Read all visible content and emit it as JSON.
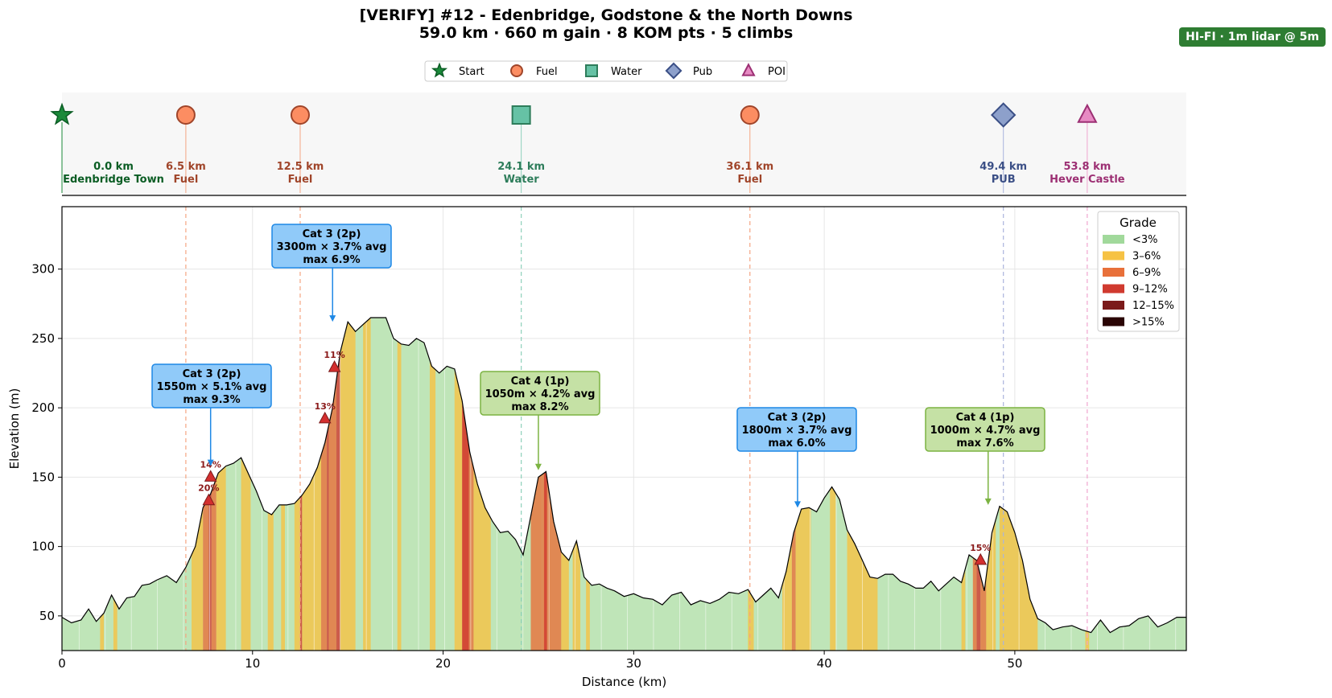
{
  "header": {
    "title": "[VERIFY] #12 - Edenbridge, Godstone & the North Downs",
    "subtitle": "59.0 km · 660 m gain · 8 KOM pts · 5 climbs",
    "badge": "HI-FI · 1m lidar @ 5m"
  },
  "legend_markers": [
    {
      "label": "Start",
      "shape": "star",
      "color": "#1b8a3a"
    },
    {
      "label": "Fuel",
      "shape": "circle",
      "color": "#fc8d62"
    },
    {
      "label": "Water",
      "shape": "square",
      "color": "#66c2a5"
    },
    {
      "label": "Pub",
      "shape": "diamond",
      "color": "#8da0cb"
    },
    {
      "label": "POI",
      "shape": "triangle",
      "color": "#e78ac3"
    }
  ],
  "waypoints": [
    {
      "km": 0.0,
      "km_label": "0.0 km",
      "name": "Edenbridge Town",
      "shape": "star",
      "fill": "#1b8a3a",
      "text_color": "#0b5d24",
      "line_color": "#1b8a3a"
    },
    {
      "km": 6.5,
      "km_label": "6.5 km",
      "name": "Fuel",
      "shape": "circle",
      "fill": "#fc8d62",
      "text_color": "#a0452a",
      "line_color": "#f4a582"
    },
    {
      "km": 12.5,
      "km_label": "12.5 km",
      "name": "Fuel",
      "shape": "circle",
      "fill": "#fc8d62",
      "text_color": "#a0452a",
      "line_color": "#f4a582"
    },
    {
      "km": 24.1,
      "km_label": "24.1 km",
      "name": "Water",
      "shape": "square",
      "fill": "#66c2a5",
      "text_color": "#2e7d5b",
      "line_color": "#8fd1bb"
    },
    {
      "km": 36.1,
      "km_label": "36.1 km",
      "name": "Fuel",
      "shape": "circle",
      "fill": "#fc8d62",
      "text_color": "#a0452a",
      "line_color": "#f4a582"
    },
    {
      "km": 49.4,
      "km_label": "49.4 km",
      "name": "PUB",
      "shape": "diamond",
      "fill": "#8da0cb",
      "text_color": "#3b4f86",
      "line_color": "#aab4dd"
    },
    {
      "km": 53.8,
      "km_label": "53.8 km",
      "name": "Hever Castle",
      "shape": "triangle",
      "fill": "#e78ac3",
      "text_color": "#9c2f73",
      "line_color": "#f0a6cf"
    }
  ],
  "climbs": [
    {
      "line1": "Cat 3 (2p)",
      "line2": "1550m × 5.1% avg",
      "line3": "max 9.3%",
      "box_color": "#90caf9",
      "edge_color": "#1e88e5",
      "target_km": 7.8,
      "target_elev": 158
    },
    {
      "line1": "Cat 3 (2p)",
      "line2": "3300m × 3.7% avg",
      "line3": "max 6.9%",
      "box_color": "#90caf9",
      "edge_color": "#1e88e5",
      "target_km": 14.2,
      "target_elev": 262
    },
    {
      "line1": "Cat 4 (1p)",
      "line2": "1050m × 4.2% avg",
      "line3": "max 8.2%",
      "box_color": "#c5e1a5",
      "edge_color": "#7cb342",
      "target_km": 25.0,
      "target_elev": 155
    },
    {
      "line1": "Cat 3 (2p)",
      "line2": "1800m × 3.7% avg",
      "line3": "max 6.0%",
      "box_color": "#90caf9",
      "edge_color": "#1e88e5",
      "target_km": 38.6,
      "target_elev": 128
    },
    {
      "line1": "Cat 4 (1p)",
      "line2": "1000m × 4.7% avg",
      "line3": "max 7.6%",
      "box_color": "#c5e1a5",
      "edge_color": "#7cb342",
      "target_km": 48.6,
      "target_elev": 130
    }
  ],
  "steep_markers": [
    {
      "km": 7.7,
      "elev": 133,
      "label": "20%"
    },
    {
      "km": 7.8,
      "elev": 150,
      "label": "14%"
    },
    {
      "km": 13.8,
      "elev": 192,
      "label": "13%"
    },
    {
      "km": 14.3,
      "elev": 229,
      "label": "11%"
    },
    {
      "km": 48.2,
      "elev": 90,
      "label": "15%"
    }
  ],
  "grade_legend": {
    "title": "Grade",
    "items": [
      {
        "label": "<3%",
        "color": "#a1d99b"
      },
      {
        "label": "3–6%",
        "color": "#f6c244"
      },
      {
        "label": "6–9%",
        "color": "#e8703a"
      },
      {
        "label": "9–12%",
        "color": "#d03a2f"
      },
      {
        "label": "12–15%",
        "color": "#7b1a1a"
      },
      {
        "label": ">15%",
        "color": "#2a0505"
      }
    ]
  },
  "chart_data": {
    "type": "area",
    "xlabel": "Distance (km)",
    "ylabel": "Elevation (m)",
    "xlim": [
      0,
      59
    ],
    "ylim": [
      25,
      345
    ],
    "xticks": [
      0,
      10,
      20,
      30,
      40,
      50
    ],
    "yticks": [
      50,
      100,
      150,
      200,
      250,
      300
    ],
    "grid": true,
    "legend_position": "top-right",
    "x": [
      0.0,
      0.5,
      1.0,
      1.4,
      1.8,
      2.2,
      2.6,
      3.0,
      3.4,
      3.8,
      4.2,
      4.6,
      5.0,
      5.5,
      6.0,
      6.5,
      7.0,
      7.4,
      7.8,
      8.2,
      8.6,
      9.0,
      9.4,
      9.8,
      10.2,
      10.6,
      11.0,
      11.4,
      11.8,
      12.2,
      12.6,
      13.0,
      13.4,
      13.8,
      14.2,
      14.6,
      15.0,
      15.4,
      15.8,
      16.2,
      16.6,
      17.0,
      17.4,
      17.8,
      18.2,
      18.6,
      19.0,
      19.4,
      19.8,
      20.2,
      20.6,
      21.0,
      21.4,
      21.8,
      22.2,
      22.6,
      23.0,
      23.4,
      23.8,
      24.2,
      24.6,
      25.0,
      25.4,
      25.8,
      26.2,
      26.6,
      27.0,
      27.4,
      27.8,
      28.2,
      28.6,
      29.0,
      29.5,
      30.0,
      30.5,
      31.0,
      31.5,
      32.0,
      32.5,
      33.0,
      33.5,
      34.0,
      34.5,
      35.0,
      35.5,
      36.0,
      36.4,
      36.8,
      37.2,
      37.6,
      38.0,
      38.4,
      38.8,
      39.2,
      39.6,
      40.0,
      40.4,
      40.8,
      41.2,
      41.6,
      42.0,
      42.4,
      42.8,
      43.2,
      43.6,
      44.0,
      44.4,
      44.8,
      45.2,
      45.6,
      46.0,
      46.4,
      46.8,
      47.2,
      47.6,
      48.0,
      48.4,
      48.8,
      49.2,
      49.6,
      50.0,
      50.4,
      50.8,
      51.2,
      51.6,
      52.0,
      52.5,
      53.0,
      53.5,
      54.0,
      54.5,
      55.0,
      55.5,
      56.0,
      56.5,
      57.0,
      57.5,
      58.0,
      58.5,
      59.0
    ],
    "elevation": [
      49,
      45,
      47,
      55,
      46,
      52,
      65,
      55,
      63,
      64,
      72,
      73,
      76,
      79,
      74,
      85,
      100,
      128,
      138,
      153,
      158,
      160,
      164,
      152,
      140,
      126,
      123,
      130,
      130,
      131,
      137,
      145,
      157,
      175,
      200,
      240,
      262,
      255,
      260,
      265,
      265,
      265,
      250,
      246,
      245,
      250,
      247,
      230,
      225,
      230,
      228,
      205,
      168,
      145,
      128,
      118,
      110,
      111,
      105,
      94,
      122,
      150,
      154,
      118,
      96,
      90,
      104,
      78,
      72,
      73,
      70,
      68,
      64,
      66,
      63,
      62,
      58,
      65,
      67,
      58,
      61,
      59,
      62,
      67,
      66,
      69,
      60,
      65,
      70,
      63,
      82,
      110,
      127,
      128,
      125,
      135,
      143,
      134,
      112,
      102,
      90,
      78,
      77,
      80,
      80,
      75,
      73,
      70,
      70,
      75,
      68,
      73,
      78,
      74,
      94,
      90,
      68,
      110,
      129,
      125,
      110,
      90,
      62,
      48,
      45,
      40,
      42,
      43,
      40,
      38,
      47,
      38,
      42,
      43,
      48,
      50,
      42,
      45,
      49,
      49
    ],
    "grade_bands": [
      {
        "from": 2.0,
        "to": 2.2,
        "grade": "3–6%"
      },
      {
        "from": 2.7,
        "to": 2.9,
        "grade": "3–6%"
      },
      {
        "from": 6.8,
        "to": 7.4,
        "grade": "3–6%"
      },
      {
        "from": 7.4,
        "to": 7.7,
        "grade": "6–9%"
      },
      {
        "from": 7.7,
        "to": 7.85,
        "grade": "9–12%"
      },
      {
        "from": 7.85,
        "to": 8.1,
        "grade": "6–9%"
      },
      {
        "from": 8.1,
        "to": 8.6,
        "grade": "3–6%"
      },
      {
        "from": 9.4,
        "to": 9.9,
        "grade": "3–6%"
      },
      {
        "from": 10.8,
        "to": 11.1,
        "grade": "3–6%"
      },
      {
        "from": 11.5,
        "to": 11.7,
        "grade": "3–6%"
      },
      {
        "from": 12.2,
        "to": 12.5,
        "grade": "3–6%"
      },
      {
        "from": 12.5,
        "to": 12.6,
        "grade": "9–12%"
      },
      {
        "from": 12.6,
        "to": 13.6,
        "grade": "3–6%"
      },
      {
        "from": 13.6,
        "to": 13.9,
        "grade": "6–9%"
      },
      {
        "from": 13.9,
        "to": 14.0,
        "grade": "9–12%"
      },
      {
        "from": 14.0,
        "to": 14.4,
        "grade": "6–9%"
      },
      {
        "from": 14.4,
        "to": 14.6,
        "grade": "9–12%"
      },
      {
        "from": 14.6,
        "to": 15.4,
        "grade": "3–6%"
      },
      {
        "from": 15.8,
        "to": 16.2,
        "grade": "3–6%"
      },
      {
        "from": 17.6,
        "to": 17.8,
        "grade": "3–6%"
      },
      {
        "from": 19.3,
        "to": 19.6,
        "grade": "3–6%"
      },
      {
        "from": 20.6,
        "to": 21.0,
        "grade": "3–6%"
      },
      {
        "from": 21.0,
        "to": 21.6,
        "grade": "6–9%"
      },
      {
        "from": 21.0,
        "to": 21.35,
        "grade": "9–12%"
      },
      {
        "from": 21.6,
        "to": 22.5,
        "grade": "3–6%"
      },
      {
        "from": 24.6,
        "to": 25.2,
        "grade": "6–9%"
      },
      {
        "from": 25.2,
        "to": 25.5,
        "grade": "6–9%"
      },
      {
        "from": 25.5,
        "to": 26.2,
        "grade": "6–9%"
      },
      {
        "from": 25.3,
        "to": 25.45,
        "grade": "9–12%"
      },
      {
        "from": 26.2,
        "to": 26.6,
        "grade": "3–6%"
      },
      {
        "from": 26.8,
        "to": 27.2,
        "grade": "3–6%"
      },
      {
        "from": 27.5,
        "to": 27.7,
        "grade": "3–6%"
      },
      {
        "from": 36.0,
        "to": 36.3,
        "grade": "3–6%"
      },
      {
        "from": 37.8,
        "to": 38.3,
        "grade": "3–6%"
      },
      {
        "from": 38.3,
        "to": 38.5,
        "grade": "6–9%"
      },
      {
        "from": 38.5,
        "to": 39.3,
        "grade": "3–6%"
      },
      {
        "from": 40.3,
        "to": 40.6,
        "grade": "3–6%"
      },
      {
        "from": 41.2,
        "to": 42.8,
        "grade": "3–6%"
      },
      {
        "from": 47.2,
        "to": 47.4,
        "grade": "3–6%"
      },
      {
        "from": 47.8,
        "to": 48.0,
        "grade": "6–9%"
      },
      {
        "from": 48.0,
        "to": 48.2,
        "grade": "9–12%"
      },
      {
        "from": 48.2,
        "to": 48.5,
        "grade": "6–9%"
      },
      {
        "from": 48.5,
        "to": 49.0,
        "grade": "3–6%"
      },
      {
        "from": 49.2,
        "to": 51.2,
        "grade": "3–6%"
      },
      {
        "from": 53.7,
        "to": 53.9,
        "grade": "3–6%"
      }
    ]
  }
}
